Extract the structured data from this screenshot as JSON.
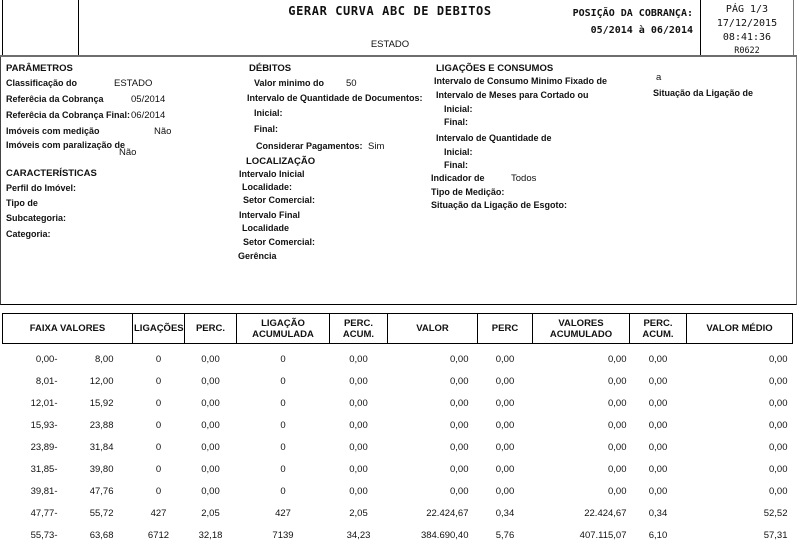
{
  "header": {
    "title": "GERAR CURVA ABC DE DEBITOS",
    "subtitle": "ESTADO",
    "position_label": "POSIÇÃO DA COBRANÇA:",
    "position_value": "05/2014 à 06/2014",
    "page": "PÁG 1/3",
    "date": "17/12/2015",
    "time": "08:41:36",
    "report_code": "R0622"
  },
  "parametros": {
    "title": "PARÂMETROS",
    "classificacao_label": "Classificação do",
    "classificacao_value": "ESTADO",
    "referencia_label": "Referêcia da Cobrança",
    "referencia_value": "05/2014",
    "referencia_final_label": "Referêcia da Cobrança Final:",
    "referencia_final_value": "06/2014",
    "medicao_label": "Imóveis com medição",
    "medicao_value": "Não",
    "paralizacao_label": "Imóveis com paralização de",
    "paralizacao_value": "Não"
  },
  "caracteristicas": {
    "title": "CARACTERÍSTICAS",
    "perfil_label": "Perfil do Imóvel:",
    "tipo_label": "Tipo de",
    "subcategoria_label": "Subcategoria:",
    "categoria_label": "Categoria:"
  },
  "debitos": {
    "title": "DÉBITOS",
    "valor_minimo_label": "Valor minimo do",
    "valor_minimo_value": "50",
    "intervalo_docs_label": "Intervalo de Quantidade de Documentos:",
    "inicial_label": "Inicial:",
    "final_label": "Final:",
    "pagamentos_label": "Considerar Pagamentos:",
    "pagamentos_value": "Sim"
  },
  "localizacao": {
    "title": "LOCALIZAÇÃO",
    "intervalo_inicial_label": "Intervalo Inicial",
    "localidade_label": "Localidade:",
    "setor_label": "Setor Comercial:",
    "intervalo_final_label": "Intervalo Final",
    "localidade2_label": "Localidade",
    "gerencia_label": "Gerência"
  },
  "ligacoes": {
    "title": "LIGAÇÕES E CONSUMOS",
    "consumo_minimo_label": "Intervalo de Consumo Minimo Fixado de",
    "consumo_minimo_value": "a",
    "meses_cortado_label": "Intervalo de Meses para Cortado ou",
    "situacao_ligacao_label": "Situação da Ligação de",
    "inicial_label": "Inicial:",
    "final_label": "Final:",
    "intervalo_qtd_label": "Intervalo de Quantidade de",
    "indicador_label": "Indicador de",
    "indicador_value": "Todos",
    "tipo_medicao_label": "Tipo de Medição:",
    "situacao_esgoto_label": "Situação da Ligação de Esgoto:"
  },
  "table": {
    "columns": [
      "FAIXA VALORES",
      "LIGAÇÕES",
      "PERC.",
      "LIGAÇÃO\nACUMULADA",
      "PERC.\nACUM.",
      "VALOR",
      "PERC",
      "VALORES\nACUMULADO",
      "PERC.\nACUM.",
      "VALOR MÉDIO"
    ],
    "rows": [
      [
        "0,00-",
        "8,00",
        "0",
        "0,00",
        "0",
        "0,00",
        "0,00",
        "0,00",
        "0,00",
        "0,00",
        "0,00"
      ],
      [
        "8,01-",
        "12,00",
        "0",
        "0,00",
        "0",
        "0,00",
        "0,00",
        "0,00",
        "0,00",
        "0,00",
        "0,00"
      ],
      [
        "12,01-",
        "15,92",
        "0",
        "0,00",
        "0",
        "0,00",
        "0,00",
        "0,00",
        "0,00",
        "0,00",
        "0,00"
      ],
      [
        "15,93-",
        "23,88",
        "0",
        "0,00",
        "0",
        "0,00",
        "0,00",
        "0,00",
        "0,00",
        "0,00",
        "0,00"
      ],
      [
        "23,89-",
        "31,84",
        "0",
        "0,00",
        "0",
        "0,00",
        "0,00",
        "0,00",
        "0,00",
        "0,00",
        "0,00"
      ],
      [
        "31,85-",
        "39,80",
        "0",
        "0,00",
        "0",
        "0,00",
        "0,00",
        "0,00",
        "0,00",
        "0,00",
        "0,00"
      ],
      [
        "39,81-",
        "47,76",
        "0",
        "0,00",
        "0",
        "0,00",
        "0,00",
        "0,00",
        "0,00",
        "0,00",
        "0,00"
      ],
      [
        "47,77-",
        "55,72",
        "427",
        "2,05",
        "427",
        "2,05",
        "22.424,67",
        "0,34",
        "22.424,67",
        "0,34",
        "52,52"
      ],
      [
        "55,73-",
        "63,68",
        "6712",
        "32,18",
        "7139",
        "34,23",
        "384.690,40",
        "5,76",
        "407.115,07",
        "6,10",
        "57,31"
      ]
    ]
  }
}
